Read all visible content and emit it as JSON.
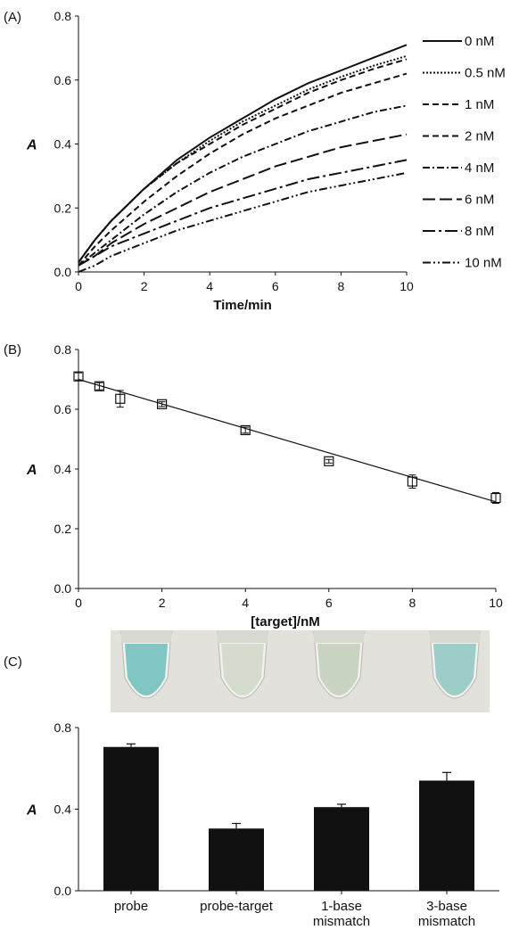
{
  "chart_data": [
    {
      "panel_label": "(A)",
      "type": "line",
      "xlabel": "Time/min",
      "ylabel": "A",
      "xlim": [
        0,
        10
      ],
      "ylim": [
        0,
        0.8
      ],
      "xticks": [
        "0",
        "2",
        "4",
        "6",
        "8",
        "10"
      ],
      "yticks": [
        "0.0",
        "0.2",
        "0.4",
        "0.6",
        "0.8"
      ],
      "legend_position": "right",
      "x": [
        0,
        0.5,
        1,
        2,
        3,
        4,
        5,
        6,
        7,
        8,
        9,
        10
      ],
      "series": [
        {
          "name": "0 nM",
          "dash": "solid",
          "values": [
            0.03,
            0.1,
            0.16,
            0.26,
            0.35,
            0.42,
            0.48,
            0.54,
            0.59,
            0.63,
            0.67,
            0.71
          ]
        },
        {
          "name": "0.5 nM",
          "dash": "dot",
          "values": [
            0.03,
            0.1,
            0.16,
            0.26,
            0.34,
            0.41,
            0.47,
            0.52,
            0.57,
            0.61,
            0.645,
            0.675
          ]
        },
        {
          "name": "1 nM",
          "dash": "dash",
          "values": [
            0.03,
            0.1,
            0.16,
            0.26,
            0.34,
            0.4,
            0.46,
            0.51,
            0.56,
            0.6,
            0.635,
            0.665
          ]
        },
        {
          "name": "2 nM",
          "dash": "dash",
          "values": [
            0.02,
            0.08,
            0.13,
            0.22,
            0.3,
            0.37,
            0.43,
            0.48,
            0.52,
            0.56,
            0.59,
            0.62
          ]
        },
        {
          "name": "4 nM",
          "dash": "dashdot",
          "values": [
            0.02,
            0.06,
            0.1,
            0.18,
            0.25,
            0.31,
            0.36,
            0.4,
            0.44,
            0.47,
            0.5,
            0.52
          ]
        },
        {
          "name": "6 nM",
          "dash": "longdash",
          "values": [
            0.02,
            0.05,
            0.09,
            0.15,
            0.2,
            0.25,
            0.29,
            0.33,
            0.36,
            0.39,
            0.41,
            0.43
          ]
        },
        {
          "name": "8 nM",
          "dash": "longdashdot",
          "values": [
            0.02,
            0.05,
            0.08,
            0.12,
            0.16,
            0.2,
            0.23,
            0.26,
            0.29,
            0.31,
            0.33,
            0.35
          ]
        },
        {
          "name": "10 nM",
          "dash": "dashdotdot",
          "values": [
            0.0,
            0.02,
            0.05,
            0.09,
            0.13,
            0.16,
            0.19,
            0.22,
            0.25,
            0.27,
            0.29,
            0.31
          ]
        }
      ]
    },
    {
      "panel_label": "(B)",
      "type": "scatter",
      "xlabel": "[target]/nM",
      "ylabel": "A",
      "xlim": [
        0,
        10
      ],
      "ylim": [
        0,
        0.8
      ],
      "xticks": [
        "0",
        "2",
        "4",
        "6",
        "8",
        "10"
      ],
      "yticks": [
        "0.0",
        "0.2",
        "0.4",
        "0.6",
        "0.8"
      ],
      "points": [
        {
          "x": 0,
          "y": 0.71,
          "err": 0.012
        },
        {
          "x": 0.5,
          "y": 0.677,
          "err": 0.012
        },
        {
          "x": 1,
          "y": 0.635,
          "err": 0.028
        },
        {
          "x": 2,
          "y": 0.617,
          "err": 0.008
        },
        {
          "x": 4,
          "y": 0.53,
          "err": 0.01
        },
        {
          "x": 6,
          "y": 0.426,
          "err": 0.006
        },
        {
          "x": 8,
          "y": 0.358,
          "err": 0.022
        },
        {
          "x": 10,
          "y": 0.303,
          "err": 0.018
        }
      ],
      "fit_line": {
        "x": [
          0,
          10
        ],
        "y": [
          0.7,
          0.29
        ]
      }
    },
    {
      "panel_label": "(C)",
      "type": "bar",
      "ylabel": "A",
      "ylim": [
        0,
        0.8
      ],
      "yticks": [
        "0.0",
        "0.4",
        "0.8"
      ],
      "categories": [
        [
          "probe"
        ],
        [
          "probe-target"
        ],
        [
          "1-base",
          "mismatch"
        ],
        [
          "3-base",
          "mismatch"
        ]
      ],
      "values": [
        0.705,
        0.305,
        0.41,
        0.54
      ],
      "errors": [
        0.015,
        0.025,
        0.014,
        0.04
      ],
      "bar_color": "#111111",
      "photo": {
        "background": "#e2e1dc",
        "tube_colors": [
          "#7fc6c4",
          "#d6dccd",
          "#c9d4c2",
          "#9ccdc6"
        ]
      }
    }
  ]
}
